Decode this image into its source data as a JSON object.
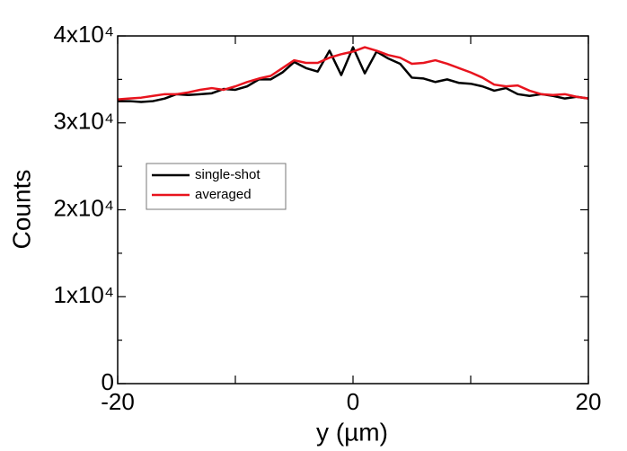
{
  "chart_data": {
    "type": "line",
    "x_label": "y (µm)",
    "y_label": "Counts",
    "x": [
      -20,
      -19,
      -18,
      -17,
      -16,
      -15,
      -14,
      -13,
      -12,
      -11,
      -10,
      -9,
      -8,
      -7,
      -6,
      -5,
      -4,
      -3,
      -2,
      -1,
      0,
      1,
      2,
      3,
      4,
      5,
      6,
      7,
      8,
      9,
      10,
      11,
      12,
      13,
      14,
      15,
      16,
      17,
      18,
      19,
      20
    ],
    "series": [
      {
        "name": "single-shot",
        "color": "#000000",
        "values": [
          32500,
          32500,
          32400,
          32500,
          32800,
          33300,
          33200,
          33300,
          33400,
          33900,
          33800,
          34200,
          35000,
          35000,
          35800,
          37000,
          36300,
          35900,
          38300,
          35500,
          38700,
          35700,
          38200,
          37400,
          36800,
          35200,
          35100,
          34700,
          35000,
          34600,
          34500,
          34200,
          33700,
          34000,
          33300,
          33100,
          33300,
          33100,
          32800,
          33000,
          32800
        ]
      },
      {
        "name": "averaged",
        "color": "#e8141e",
        "values": [
          32700,
          32800,
          32900,
          33100,
          33300,
          33300,
          33500,
          33800,
          34000,
          33800,
          34200,
          34700,
          35100,
          35400,
          36300,
          37200,
          36900,
          36900,
          37500,
          37900,
          38200,
          38700,
          38300,
          37800,
          37500,
          36800,
          36900,
          37200,
          36800,
          36300,
          35800,
          35200,
          34400,
          34200,
          34300,
          33700,
          33300,
          33200,
          33300,
          33000,
          32800
        ]
      }
    ],
    "xlim": [
      -20,
      20
    ],
    "xticks": [
      -20,
      0,
      20
    ],
    "xminor_ticks": [
      -10,
      10
    ],
    "ylim": [
      0,
      40000
    ],
    "yticks": [
      0,
      {
        "value": 10000,
        "label": "1x10⁴"
      },
      {
        "value": 20000,
        "label": "2x10⁴"
      },
      {
        "value": 30000,
        "label": "3x10⁴"
      },
      {
        "value": 40000,
        "label": "4x10⁴"
      }
    ],
    "yminor_ticks": [
      5000,
      15000,
      25000,
      35000
    ],
    "legend": "upper left"
  }
}
